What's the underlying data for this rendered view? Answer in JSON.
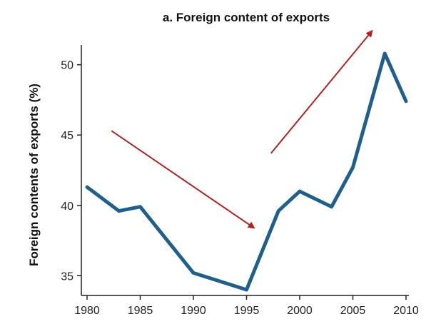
{
  "chart_data": {
    "type": "line",
    "title": "a. Foreign content of exports",
    "xlabel": "",
    "ylabel": "Foreign contents of exports (%)",
    "xlim": [
      1980,
      2010
    ],
    "ylim": [
      34,
      51
    ],
    "xticks": [
      "1980",
      "1985",
      "1990",
      "1995",
      "2000",
      "2005",
      "2010"
    ],
    "yticks": [
      "35",
      "40",
      "45",
      "50"
    ],
    "grid": false,
    "series": [
      {
        "name": "",
        "color": "#1f5f8b",
        "x": [
          1980,
          1983,
          1985,
          1990,
          1995,
          1998,
          2000,
          2003,
          2005,
          2008,
          2010
        ],
        "y": [
          41.3,
          39.6,
          39.9,
          35.2,
          34.0,
          39.6,
          41.0,
          39.9,
          42.7,
          50.8,
          47.4
        ]
      }
    ],
    "annotations": [
      {
        "type": "arrow",
        "color": "#b22222",
        "from": [
          1982.3,
          45.3
        ],
        "to": [
          1995.7,
          38.4
        ]
      },
      {
        "type": "arrow",
        "color": "#b22222",
        "from": [
          1997.3,
          43.7
        ],
        "to": [
          2006.8,
          52.4
        ]
      }
    ]
  }
}
